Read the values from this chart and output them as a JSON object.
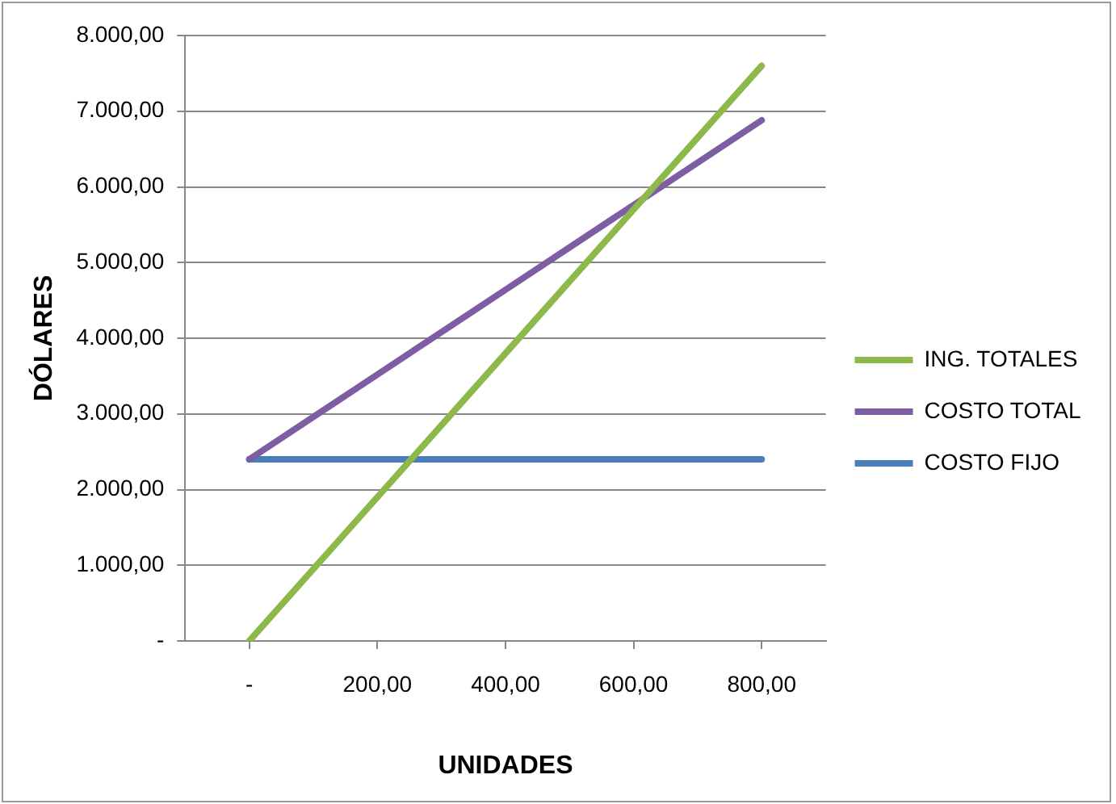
{
  "chart_data": {
    "type": "line",
    "xlabel": "UNIDADES",
    "ylabel": "DÓLARES",
    "x": [
      0,
      200,
      400,
      600,
      800
    ],
    "series": [
      {
        "name": "ING. TOTALES",
        "color": "#8db84a",
        "values": [
          0,
          1900,
          3800,
          5700,
          7600
        ]
      },
      {
        "name": "COSTO TOTAL",
        "color": "#7d5ea3",
        "values": [
          2400,
          3520,
          4640,
          5760,
          6880
        ]
      },
      {
        "name": "COSTO FIJO",
        "color": "#4a7ebb",
        "values": [
          2400,
          2400,
          2400,
          2400,
          2400
        ]
      }
    ],
    "xlim": [
      -100,
      900
    ],
    "xticks": [
      {
        "value": 0,
        "label": "-"
      },
      {
        "value": 200,
        "label": "200,00"
      },
      {
        "value": 400,
        "label": "400,00"
      },
      {
        "value": 600,
        "label": "600,00"
      },
      {
        "value": 800,
        "label": "800,00"
      }
    ],
    "ylim": [
      0,
      8000
    ],
    "yticks": [
      {
        "value": 0,
        "label": "-"
      },
      {
        "value": 1000,
        "label": "1.000,00"
      },
      {
        "value": 2000,
        "label": "2.000,00"
      },
      {
        "value": 3000,
        "label": "3.000,00"
      },
      {
        "value": 4000,
        "label": "4.000,00"
      },
      {
        "value": 5000,
        "label": "5.000,00"
      },
      {
        "value": 6000,
        "label": "6.000,00"
      },
      {
        "value": 7000,
        "label": "7.000,00"
      },
      {
        "value": 8000,
        "label": "8.000,00"
      }
    ],
    "grid": "y",
    "legend": "right",
    "marker": "none",
    "line_style": "solid"
  }
}
